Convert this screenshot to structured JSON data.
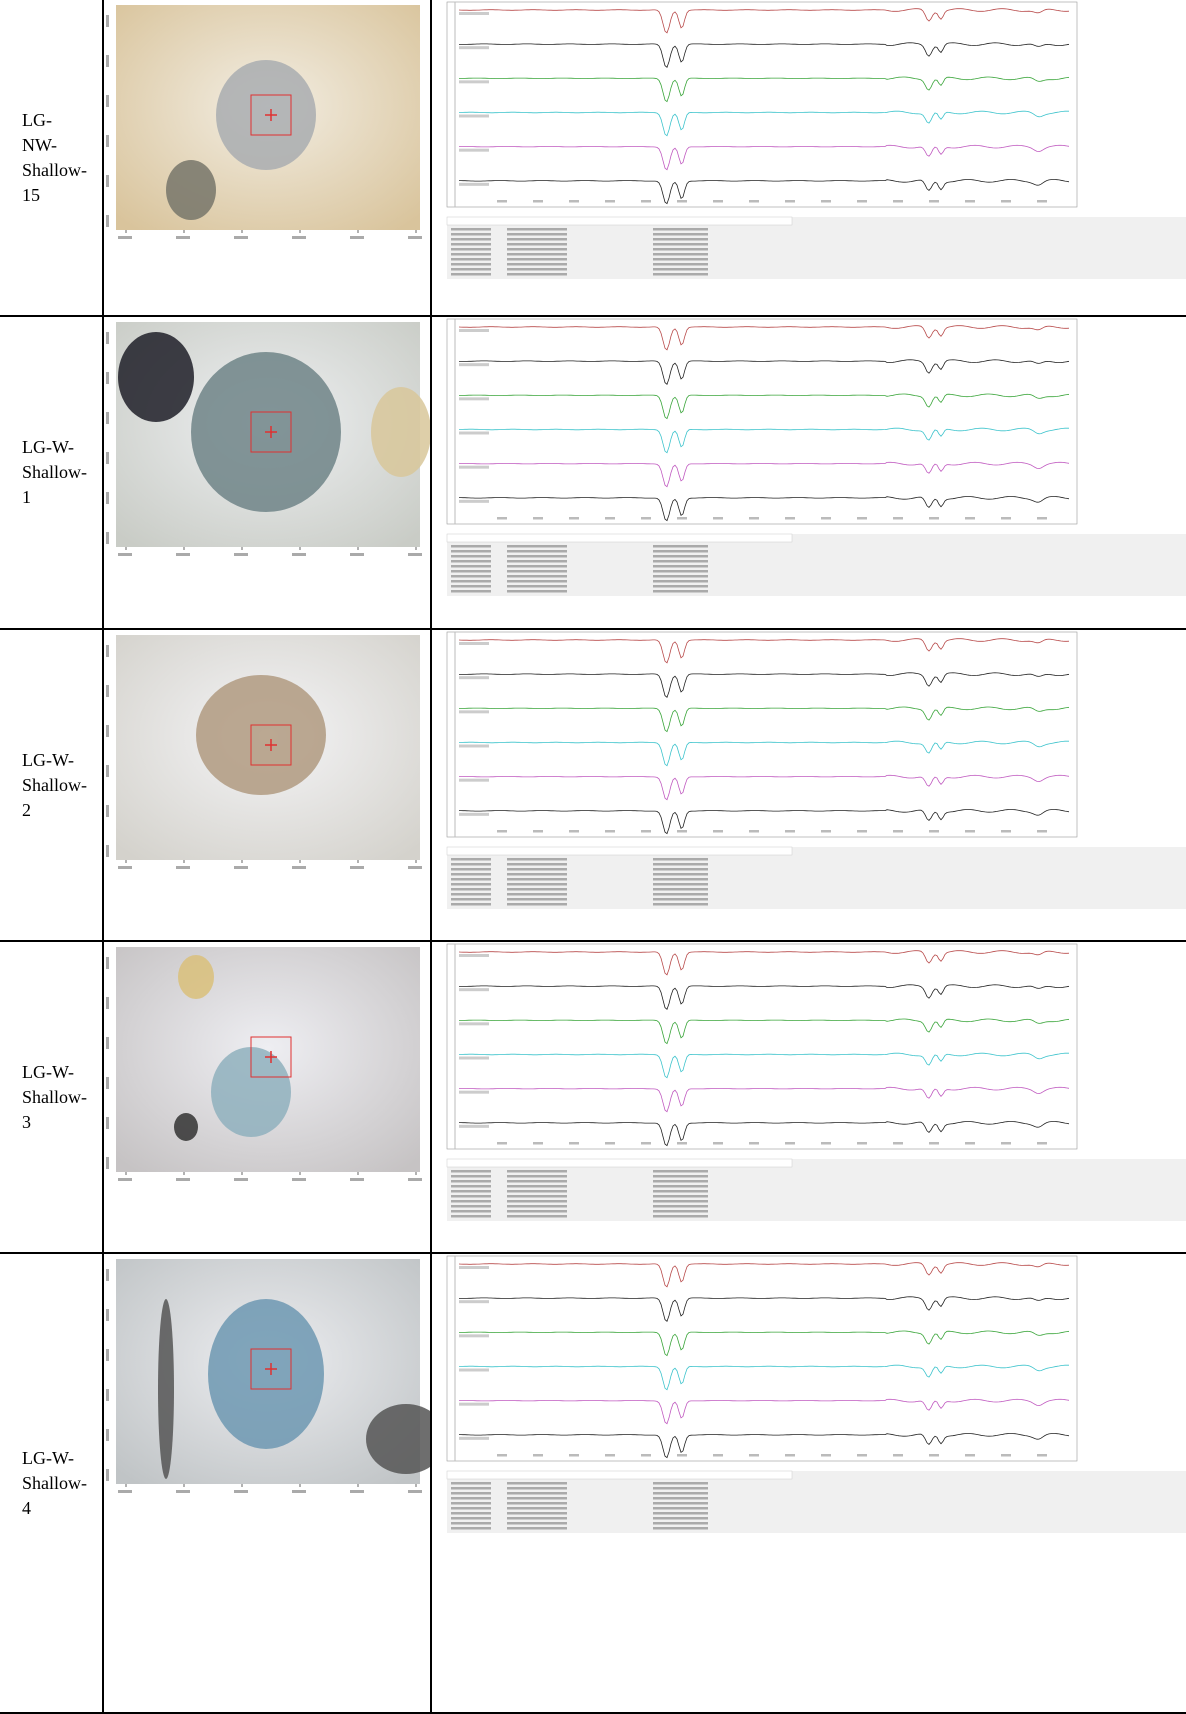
{
  "rows": [
    {
      "label": [
        "LG-",
        "NW-",
        "Shallow-",
        "15"
      ]
    },
    {
      "label": [
        "LG-W-",
        "Shallow-",
        "1"
      ]
    },
    {
      "label": [
        "LG-W-",
        "Shallow-",
        "2"
      ]
    },
    {
      "label": [
        "LG-W-",
        "Shallow-",
        "3"
      ]
    },
    {
      "label": [
        "LG-W-",
        "Shallow-",
        "4"
      ]
    }
  ]
}
